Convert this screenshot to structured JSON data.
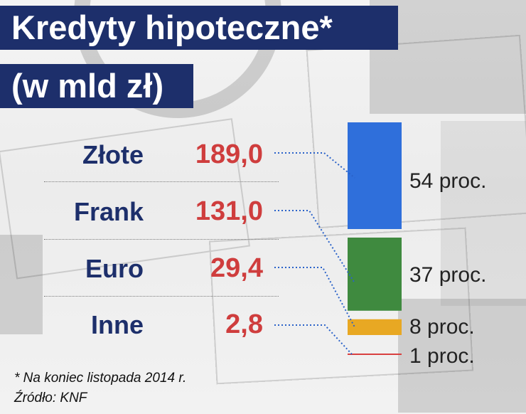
{
  "title": {
    "line1": "Kredyty hipoteczne*",
    "line2": "(w mld zł)"
  },
  "chart_data": {
    "type": "bar",
    "title": "Kredyty hipoteczne* (w mld zł)",
    "categories": [
      "Złote",
      "Frank",
      "Euro",
      "Inne"
    ],
    "value_labels": [
      "189,0",
      "131,0",
      "29,4",
      "2,8"
    ],
    "values": [
      189.0,
      131.0,
      29.4,
      2.8
    ],
    "share_labels": [
      "54 proc.",
      "37 proc.",
      "8 proc.",
      "1 proc."
    ],
    "shares_percent": [
      54,
      37,
      8,
      1
    ],
    "colors": [
      "#2f6fdb",
      "#3f8a3f",
      "#e8a823",
      "#d94040"
    ],
    "layout": "stacked-single-column"
  },
  "colors": {
    "title_background": "#1d2f6b",
    "title_text": "#ffffff",
    "label_text": "#1d2f6b",
    "value_text": "#cf3d3d"
  },
  "footnote": "* Na koniec listopada 2014 r.",
  "source": "Źródło: KNF"
}
